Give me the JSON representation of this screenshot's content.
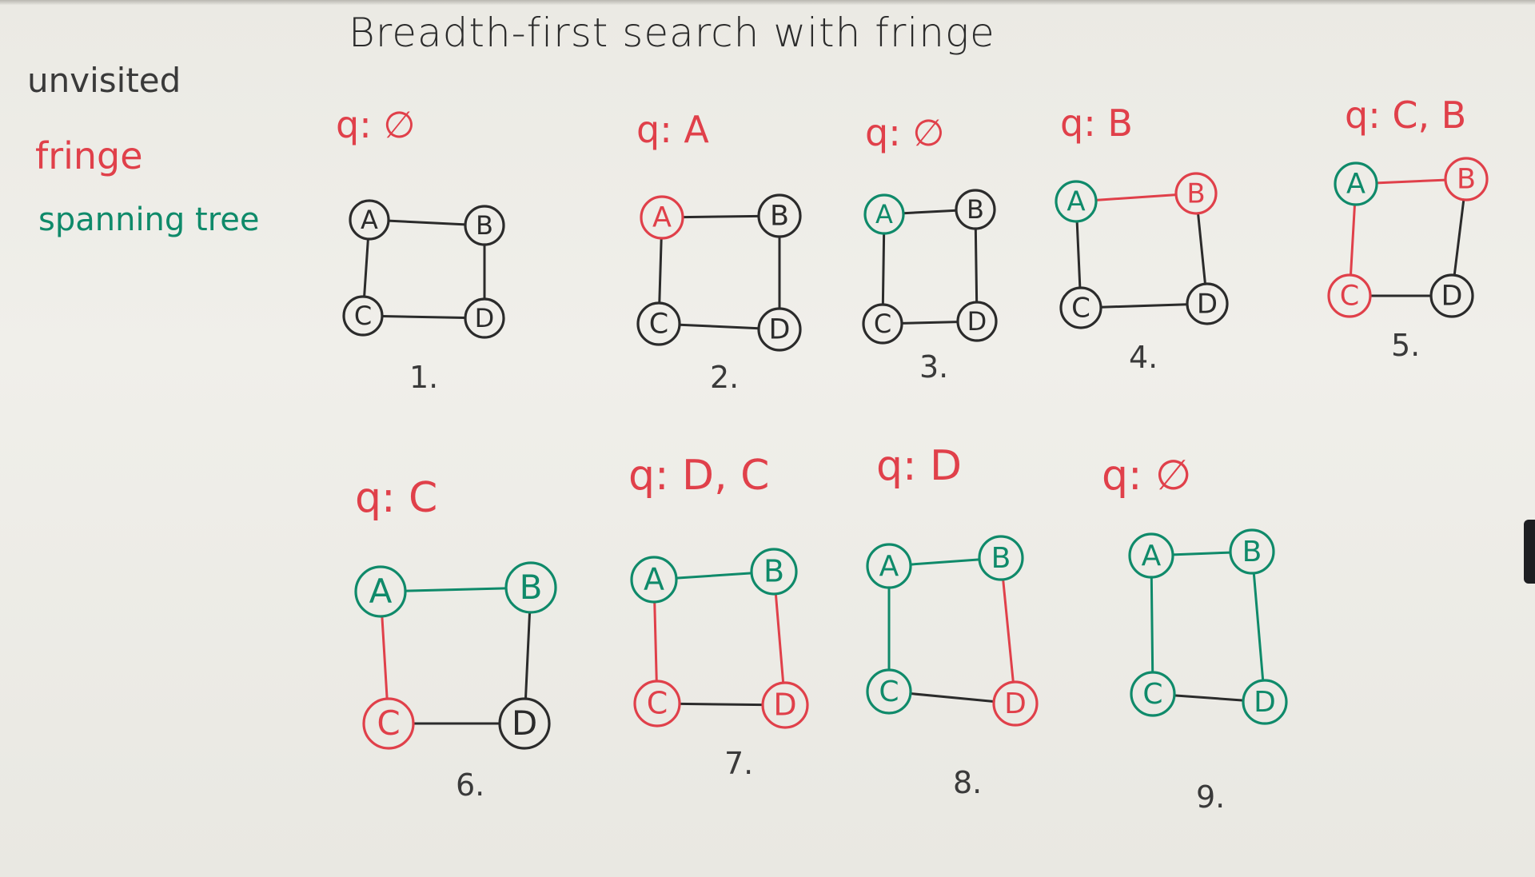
{
  "title": "Breadth-first search with fringe",
  "legend": {
    "unvisited": "unvisited",
    "fringe": "fringe",
    "spanning_tree": "spanning tree"
  },
  "colors": {
    "unvisited": "#2b2b2b",
    "fringe": "#e0404a",
    "tree": "#0f8a6a",
    "board": "#ecebe6"
  },
  "steps": [
    {
      "number": "1.",
      "queue": "q: ∅",
      "nodes": {
        "A": "unvisited",
        "B": "unvisited",
        "C": "unvisited",
        "D": "unvisited"
      },
      "edges": {
        "AB": "unvisited",
        "AC": "unvisited",
        "BD": "unvisited",
        "CD": "unvisited"
      }
    },
    {
      "number": "2.",
      "queue": "q: A",
      "nodes": {
        "A": "fringe",
        "B": "unvisited",
        "C": "unvisited",
        "D": "unvisited"
      },
      "edges": {
        "AB": "unvisited",
        "AC": "unvisited",
        "BD": "unvisited",
        "CD": "unvisited"
      }
    },
    {
      "number": "3.",
      "queue": "q: ∅",
      "nodes": {
        "A": "tree",
        "B": "unvisited",
        "C": "unvisited",
        "D": "unvisited"
      },
      "edges": {
        "AB": "unvisited",
        "AC": "unvisited",
        "BD": "unvisited",
        "CD": "unvisited"
      }
    },
    {
      "number": "4.",
      "queue": "q: B",
      "nodes": {
        "A": "tree",
        "B": "fringe",
        "C": "unvisited",
        "D": "unvisited"
      },
      "edges": {
        "AB": "fringe",
        "AC": "unvisited",
        "BD": "unvisited",
        "CD": "unvisited"
      }
    },
    {
      "number": "5.",
      "queue": "q: C, B",
      "nodes": {
        "A": "tree",
        "B": "fringe",
        "C": "fringe",
        "D": "unvisited"
      },
      "edges": {
        "AB": "fringe",
        "AC": "fringe",
        "BD": "unvisited",
        "CD": "unvisited"
      }
    },
    {
      "number": "6.",
      "queue": "q: C",
      "nodes": {
        "A": "tree",
        "B": "tree",
        "C": "fringe",
        "D": "unvisited"
      },
      "edges": {
        "AB": "tree",
        "AC": "fringe",
        "BD": "unvisited",
        "CD": "unvisited"
      }
    },
    {
      "number": "7.",
      "queue": "q: D, C",
      "nodes": {
        "A": "tree",
        "B": "tree",
        "C": "fringe",
        "D": "fringe"
      },
      "edges": {
        "AB": "tree",
        "AC": "fringe",
        "BD": "fringe",
        "CD": "unvisited"
      }
    },
    {
      "number": "8.",
      "queue": "q: D",
      "nodes": {
        "A": "tree",
        "B": "tree",
        "C": "tree",
        "D": "fringe"
      },
      "edges": {
        "AB": "tree",
        "AC": "tree",
        "BD": "fringe",
        "CD": "unvisited"
      }
    },
    {
      "number": "9.",
      "queue": "q: ∅",
      "nodes": {
        "A": "tree",
        "B": "tree",
        "C": "tree",
        "D": "tree"
      },
      "edges": {
        "AB": "tree",
        "AC": "tree",
        "BD": "tree",
        "CD": "unvisited"
      }
    }
  ]
}
